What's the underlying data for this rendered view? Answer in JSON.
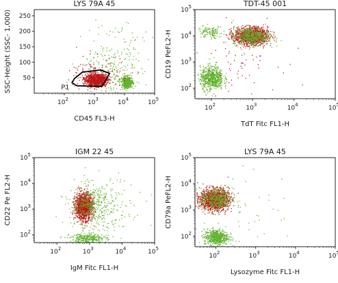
{
  "chart_data": [
    {
      "type": "scatter",
      "title": "LYS 79A 45",
      "xlabel": "CD45 FL3-H",
      "ylabel": "SSC-Height (SSC- 1,000)",
      "x_scale": "log",
      "y_scale": "linear",
      "xlim": [
        10,
        100000
      ],
      "ylim": [
        0,
        270
      ],
      "x_ticks": [
        {
          "value": 100,
          "label": "10",
          "sup": "2"
        },
        {
          "value": 1000,
          "label": "10",
          "sup": "3"
        },
        {
          "value": 10000,
          "label": "10",
          "sup": "4"
        },
        {
          "value": 100000,
          "label": "10",
          "sup": "5"
        }
      ],
      "y_ticks": [
        {
          "value": 50,
          "label": "50"
        },
        {
          "value": 100,
          "label": "100"
        },
        {
          "value": 150,
          "label": "150"
        },
        {
          "value": 200,
          "label": "200"
        },
        {
          "value": 250,
          "label": "250"
        }
      ],
      "gate": {
        "label": "P1",
        "polygon": [
          [
            220,
            48
          ],
          [
            400,
            68
          ],
          [
            1600,
            75
          ],
          [
            3200,
            64
          ],
          [
            1800,
            22
          ],
          [
            260,
            24
          ],
          [
            180,
            34
          ]
        ]
      },
      "populations": [
        {
          "color": "#c0161b",
          "count": 1300,
          "x_center": 1100,
          "x_spread_log": 0.17,
          "y_center": 44,
          "y_spread": 9
        },
        {
          "color": "#62b22f",
          "count": 500,
          "x_center": 12000,
          "x_spread_log": 0.09,
          "y_center": 36,
          "y_spread": 9
        },
        {
          "color": "#62b22f",
          "count": 160,
          "x_center": 3000,
          "x_spread_log": 0.45,
          "y_center": 75,
          "y_spread": 40
        },
        {
          "color": "#62b22f",
          "count": 80,
          "x_center": 5000,
          "x_spread_log": 0.6,
          "y_center": 150,
          "y_spread": 55
        },
        {
          "color": "#c0161b",
          "count": 120,
          "x_center": 1500,
          "x_spread_log": 0.5,
          "y_center": 60,
          "y_spread": 30
        }
      ]
    },
    {
      "type": "scatter",
      "title": "TDT-45 001",
      "xlabel": "TdT Fitc FL1-H",
      "ylabel": "CD19 PeFL2-H",
      "x_scale": "log",
      "y_scale": "log",
      "xlim": [
        40,
        100000
      ],
      "ylim": [
        40,
        100000
      ],
      "x_ticks": [
        {
          "value": 100,
          "label": "10",
          "sup": "2"
        },
        {
          "value": 1000,
          "label": "10",
          "sup": "3"
        },
        {
          "value": 10000,
          "label": "10",
          "sup": "4"
        },
        {
          "value": 100000,
          "label": "10",
          "sup": "5"
        }
      ],
      "y_ticks": [
        {
          "value": 100,
          "label": "10",
          "sup": "2"
        },
        {
          "value": 1000,
          "label": "10",
          "sup": "3"
        },
        {
          "value": 10000,
          "label": "10",
          "sup": "4"
        },
        {
          "value": 100000,
          "label": "10",
          "sup": "5"
        }
      ],
      "populations": [
        {
          "color": "#c0161b",
          "count": 1300,
          "x_center": 900,
          "x_spread_log": 0.2,
          "y_center": 10000,
          "y_spread_log": 0.16
        },
        {
          "color": "#62b22f",
          "count": 500,
          "x_center": 900,
          "x_spread_log": 0.22,
          "y_center": 10000,
          "y_spread_log": 0.17
        },
        {
          "color": "#62b22f",
          "count": 650,
          "x_center": 100,
          "x_spread_log": 0.14,
          "y_center": 250,
          "y_spread_log": 0.22
        },
        {
          "color": "#62b22f",
          "count": 120,
          "x_center": 90,
          "x_spread_log": 0.15,
          "y_center": 14000,
          "y_spread_log": 0.12
        },
        {
          "color": "#c0161b",
          "count": 70,
          "x_center": 400,
          "x_spread_log": 0.5,
          "y_center": 1500,
          "y_spread_log": 0.6
        }
      ]
    },
    {
      "type": "scatter",
      "title": "IGM 22 45",
      "xlabel": "IgM Fitc FL1-H",
      "ylabel": "CD22 Pe FL2-H",
      "x_scale": "log",
      "y_scale": "log",
      "xlim": [
        20,
        100000
      ],
      "ylim": [
        50,
        100000
      ],
      "x_ticks": [
        {
          "value": 100,
          "label": "10",
          "sup": "2"
        },
        {
          "value": 1000,
          "label": "10",
          "sup": "3"
        },
        {
          "value": 10000,
          "label": "10",
          "sup": "4"
        },
        {
          "value": 100000,
          "label": "10",
          "sup": "5"
        }
      ],
      "y_ticks": [
        {
          "value": 100,
          "label": "10",
          "sup": "2"
        },
        {
          "value": 1000,
          "label": "10",
          "sup": "3"
        },
        {
          "value": 10000,
          "label": "10",
          "sup": "4"
        },
        {
          "value": 100000,
          "label": "10",
          "sup": "5"
        }
      ],
      "populations": [
        {
          "color": "#c0161b",
          "count": 1400,
          "x_center": 650,
          "x_spread_log": 0.13,
          "y_center": 1300,
          "y_spread_log": 0.25
        },
        {
          "color": "#62b22f",
          "count": 320,
          "x_center": 1000,
          "x_spread_log": 0.28,
          "y_center": 1500,
          "y_spread_log": 0.35
        },
        {
          "color": "#62b22f",
          "count": 300,
          "x_center": 900,
          "x_spread_log": 0.28,
          "y_center": 75,
          "y_spread_log": 0.09
        },
        {
          "color": "#62b22f",
          "count": 150,
          "x_center": 3000,
          "x_spread_log": 0.4,
          "y_center": 800,
          "y_spread_log": 0.5
        },
        {
          "color": "#62b22f",
          "count": 60,
          "x_center": 2000,
          "x_spread_log": 0.9,
          "y_center": 3000,
          "y_spread_log": 0.7
        }
      ]
    },
    {
      "type": "scatter",
      "title": "LYS 79A 45",
      "xlabel": "Lysozyme Fitc FL1-H",
      "ylabel": "CD79a PeFL2-H",
      "x_scale": "log",
      "y_scale": "log",
      "xlim": [
        30,
        100000
      ],
      "ylim": [
        40,
        100000
      ],
      "x_ticks": [
        {
          "value": 100,
          "label": "10",
          "sup": "2"
        },
        {
          "value": 1000,
          "label": "10",
          "sup": "3"
        },
        {
          "value": 10000,
          "label": "10",
          "sup": "4"
        },
        {
          "value": 100000,
          "label": "10",
          "sup": "5"
        }
      ],
      "y_ticks": [
        {
          "value": 100,
          "label": "10",
          "sup": "2"
        },
        {
          "value": 1000,
          "label": "10",
          "sup": "3"
        },
        {
          "value": 10000,
          "label": "10",
          "sup": "4"
        },
        {
          "value": 100000,
          "label": "10",
          "sup": "5"
        }
      ],
      "populations": [
        {
          "color": "#c0161b",
          "count": 1300,
          "x_center": 90,
          "x_spread_log": 0.18,
          "y_center": 2600,
          "y_spread_log": 0.2
        },
        {
          "color": "#62b22f",
          "count": 420,
          "x_center": 100,
          "x_spread_log": 0.2,
          "y_center": 2600,
          "y_spread_log": 0.22
        },
        {
          "color": "#62b22f",
          "count": 600,
          "x_center": 100,
          "x_spread_log": 0.15,
          "y_center": 95,
          "y_spread_log": 0.15
        },
        {
          "color": "#62b22f",
          "count": 40,
          "x_center": 600,
          "x_spread_log": 0.6,
          "y_center": 1500,
          "y_spread_log": 0.7
        }
      ]
    }
  ]
}
